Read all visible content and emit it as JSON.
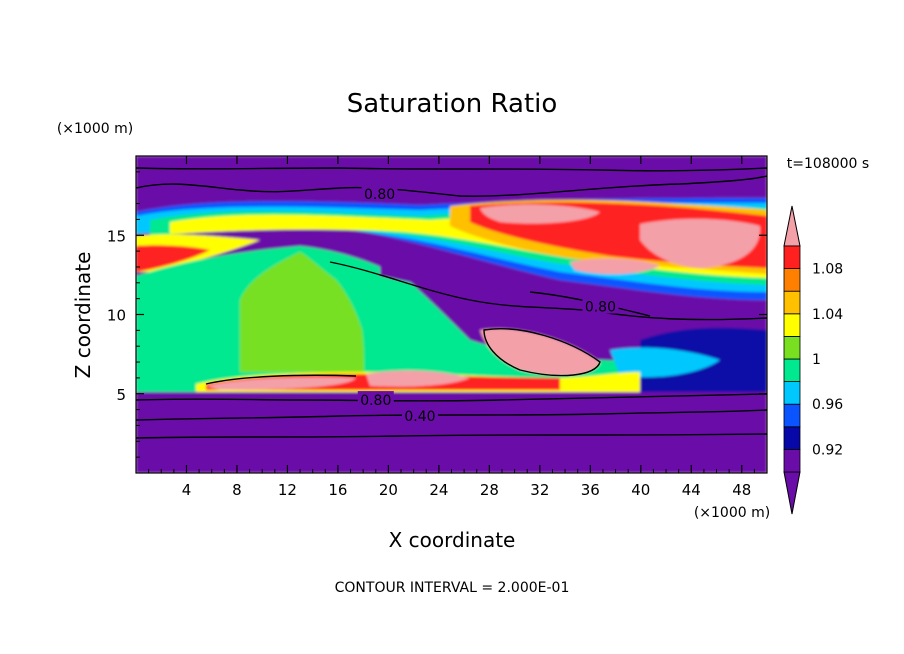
{
  "chart_data": {
    "type": "heatmap",
    "title": "Saturation Ratio",
    "xlabel": "X coordinate",
    "ylabel": "Z coordinate",
    "x_unit": "(×1000 m)",
    "y_unit": "(×1000 m)",
    "time_label": "t=108000 s",
    "footer": "CONTOUR INTERVAL = 2.000E-01",
    "xlim": [
      0,
      50
    ],
    "ylim": [
      0,
      20
    ],
    "x_ticks": [
      4,
      8,
      12,
      16,
      20,
      24,
      28,
      32,
      36,
      40,
      44,
      48
    ],
    "y_ticks": [
      5,
      10,
      15
    ],
    "colorbar": {
      "levels": [
        0.9,
        0.92,
        0.94,
        0.96,
        0.98,
        1.0,
        1.02,
        1.04,
        1.06,
        1.08,
        1.1
      ],
      "tick_labels": [
        {
          "value": 0.92,
          "label": "0.92"
        },
        {
          "value": 0.96,
          "label": "0.96"
        },
        {
          "value": 1.0,
          "label": "1"
        },
        {
          "value": 1.04,
          "label": "1.04"
        },
        {
          "value": 1.08,
          "label": "1.08"
        }
      ],
      "colors": [
        "#6a0da8",
        "#0808a8",
        "#0a55ff",
        "#00c8ff",
        "#00e890",
        "#78e020",
        "#ffff00",
        "#ffc000",
        "#ff8000",
        "#ff2020",
        "#f4a0a8"
      ],
      "extend": "both"
    },
    "contour_labels": [
      {
        "x": 19.3,
        "y": 17.6,
        "label": "0.80"
      },
      {
        "x": 36.8,
        "y": 10.5,
        "label": "0.80"
      },
      {
        "x": 19.0,
        "y": 4.6,
        "label": "0.80"
      },
      {
        "x": 22.5,
        "y": 3.6,
        "label": "0.40"
      }
    ],
    "grid": false
  }
}
